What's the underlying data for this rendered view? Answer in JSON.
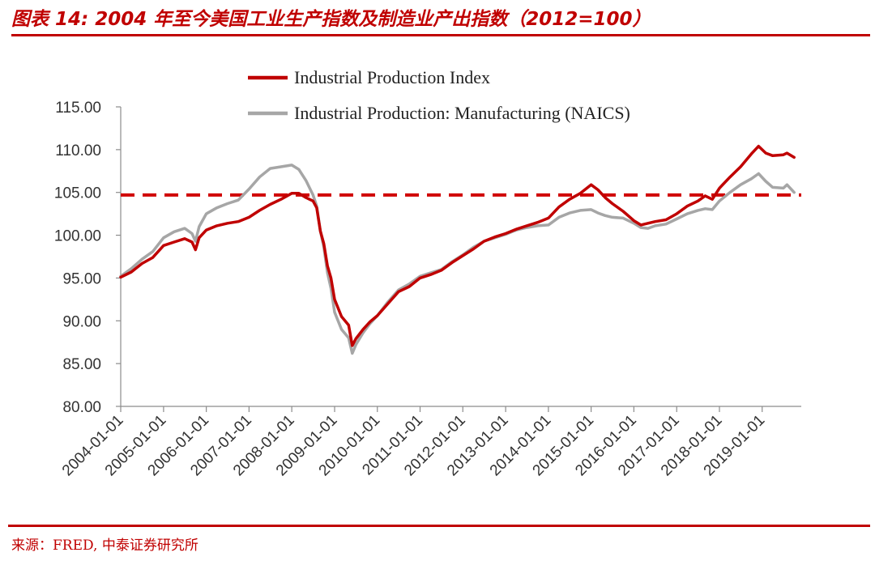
{
  "figure": {
    "title": "图表 14:  2004 年至今美国工业生产指数及制造业产出指数（2012=100）",
    "source": "来源：FRED, 中泰证券研究所"
  },
  "chart_data": {
    "type": "line",
    "ylim": [
      80,
      115
    ],
    "y_ticks": [
      "115.00",
      "110.00",
      "105.00",
      "100.00",
      "95.00",
      "90.00",
      "85.00",
      "80.00"
    ],
    "x_ticks": [
      "2004-01-01",
      "2005-01-01",
      "2006-01-01",
      "2007-01-01",
      "2008-01-01",
      "2009-01-01",
      "2010-01-01",
      "2011-01-01",
      "2012-01-01",
      "2013-01-01",
      "2014-01-01",
      "2015-01-01",
      "2016-01-01",
      "2017-01-01",
      "2018-01-01",
      "2019-01-01"
    ],
    "grid": false,
    "legend_position": "top",
    "reference_line": {
      "y": 104.7,
      "style": "dashed",
      "color": "#d00000"
    },
    "series": [
      {
        "name": "Industrial Production Index",
        "color": "#c00000",
        "points": [
          [
            "2004-01-01",
            95.1
          ],
          [
            "2004-04-01",
            95.7
          ],
          [
            "2004-07-01",
            96.7
          ],
          [
            "2004-10-01",
            97.4
          ],
          [
            "2005-01-01",
            98.8
          ],
          [
            "2005-04-01",
            99.2
          ],
          [
            "2005-07-01",
            99.6
          ],
          [
            "2005-09-01",
            99.2
          ],
          [
            "2005-10-01",
            98.3
          ],
          [
            "2005-11-01",
            99.7
          ],
          [
            "2006-01-01",
            100.6
          ],
          [
            "2006-04-01",
            101.1
          ],
          [
            "2006-07-01",
            101.4
          ],
          [
            "2006-10-01",
            101.6
          ],
          [
            "2007-01-01",
            102.1
          ],
          [
            "2007-04-01",
            102.9
          ],
          [
            "2007-07-01",
            103.6
          ],
          [
            "2007-10-01",
            104.2
          ],
          [
            "2008-01-01",
            104.9
          ],
          [
            "2008-03-01",
            104.9
          ],
          [
            "2008-05-01",
            104.4
          ],
          [
            "2008-07-01",
            104.0
          ],
          [
            "2008-08-01",
            103.2
          ],
          [
            "2008-09-01",
            100.5
          ],
          [
            "2008-10-01",
            99.0
          ],
          [
            "2008-11-01",
            96.4
          ],
          [
            "2008-12-01",
            95.0
          ],
          [
            "2009-01-01",
            92.5
          ],
          [
            "2009-03-01",
            90.5
          ],
          [
            "2009-05-01",
            89.5
          ],
          [
            "2009-06-01",
            87.1
          ],
          [
            "2009-07-01",
            87.9
          ],
          [
            "2009-09-01",
            89.0
          ],
          [
            "2009-11-01",
            89.9
          ],
          [
            "2010-01-01",
            90.6
          ],
          [
            "2010-04-01",
            92.0
          ],
          [
            "2010-07-01",
            93.4
          ],
          [
            "2010-10-01",
            94.0
          ],
          [
            "2011-01-01",
            95.0
          ],
          [
            "2011-04-01",
            95.4
          ],
          [
            "2011-07-01",
            95.9
          ],
          [
            "2011-10-01",
            96.8
          ],
          [
            "2012-01-01",
            97.6
          ],
          [
            "2012-04-01",
            98.4
          ],
          [
            "2012-07-01",
            99.3
          ],
          [
            "2012-10-01",
            99.8
          ],
          [
            "2013-01-01",
            100.2
          ],
          [
            "2013-04-01",
            100.7
          ],
          [
            "2013-07-01",
            101.1
          ],
          [
            "2013-10-01",
            101.5
          ],
          [
            "2014-01-01",
            102.0
          ],
          [
            "2014-04-01",
            103.3
          ],
          [
            "2014-07-01",
            104.2
          ],
          [
            "2014-10-01",
            104.9
          ],
          [
            "2015-01-01",
            105.9
          ],
          [
            "2015-03-01",
            105.3
          ],
          [
            "2015-05-01",
            104.4
          ],
          [
            "2015-07-01",
            103.7
          ],
          [
            "2015-10-01",
            102.8
          ],
          [
            "2016-01-01",
            101.7
          ],
          [
            "2016-03-01",
            101.2
          ],
          [
            "2016-05-01",
            101.4
          ],
          [
            "2016-07-01",
            101.6
          ],
          [
            "2016-10-01",
            101.8
          ],
          [
            "2017-01-01",
            102.5
          ],
          [
            "2017-04-01",
            103.4
          ],
          [
            "2017-07-01",
            104.0
          ],
          [
            "2017-09-01",
            104.6
          ],
          [
            "2017-11-01",
            104.2
          ],
          [
            "2018-01-01",
            105.5
          ],
          [
            "2018-04-01",
            106.8
          ],
          [
            "2018-07-01",
            108.0
          ],
          [
            "2018-10-01",
            109.5
          ],
          [
            "2018-12-01",
            110.4
          ],
          [
            "2019-02-01",
            109.6
          ],
          [
            "2019-04-01",
            109.3
          ],
          [
            "2019-07-01",
            109.4
          ],
          [
            "2019-08-01",
            109.6
          ],
          [
            "2019-10-01",
            109.1
          ]
        ]
      },
      {
        "name": "Industrial Production: Manufacturing (NAICS)",
        "color": "#a6a6a6",
        "points": [
          [
            "2004-01-01",
            95.2
          ],
          [
            "2004-04-01",
            96.1
          ],
          [
            "2004-07-01",
            97.2
          ],
          [
            "2004-10-01",
            98.1
          ],
          [
            "2005-01-01",
            99.7
          ],
          [
            "2005-04-01",
            100.4
          ],
          [
            "2005-07-01",
            100.8
          ],
          [
            "2005-09-01",
            100.2
          ],
          [
            "2005-10-01",
            99.3
          ],
          [
            "2005-11-01",
            101.0
          ],
          [
            "2006-01-01",
            102.5
          ],
          [
            "2006-04-01",
            103.2
          ],
          [
            "2006-07-01",
            103.7
          ],
          [
            "2006-10-01",
            104.1
          ],
          [
            "2007-01-01",
            105.4
          ],
          [
            "2007-04-01",
            106.8
          ],
          [
            "2007-07-01",
            107.8
          ],
          [
            "2007-10-01",
            108.0
          ],
          [
            "2008-01-01",
            108.2
          ],
          [
            "2008-03-01",
            107.7
          ],
          [
            "2008-05-01",
            106.4
          ],
          [
            "2008-07-01",
            104.7
          ],
          [
            "2008-08-01",
            103.4
          ],
          [
            "2008-09-01",
            100.5
          ],
          [
            "2008-10-01",
            98.6
          ],
          [
            "2008-11-01",
            95.6
          ],
          [
            "2008-12-01",
            93.8
          ],
          [
            "2009-01-01",
            91.0
          ],
          [
            "2009-03-01",
            89.0
          ],
          [
            "2009-05-01",
            88.0
          ],
          [
            "2009-06-01",
            86.2
          ],
          [
            "2009-07-01",
            87.2
          ],
          [
            "2009-09-01",
            88.6
          ],
          [
            "2009-11-01",
            89.7
          ],
          [
            "2010-01-01",
            90.6
          ],
          [
            "2010-04-01",
            92.2
          ],
          [
            "2010-07-01",
            93.6
          ],
          [
            "2010-10-01",
            94.3
          ],
          [
            "2011-01-01",
            95.2
          ],
          [
            "2011-04-01",
            95.6
          ],
          [
            "2011-07-01",
            96.0
          ],
          [
            "2011-10-01",
            96.9
          ],
          [
            "2012-01-01",
            97.7
          ],
          [
            "2012-04-01",
            98.6
          ],
          [
            "2012-07-01",
            99.3
          ],
          [
            "2012-10-01",
            99.7
          ],
          [
            "2013-01-01",
            100.1
          ],
          [
            "2013-04-01",
            100.6
          ],
          [
            "2013-07-01",
            100.9
          ],
          [
            "2013-10-01",
            101.1
          ],
          [
            "2014-01-01",
            101.2
          ],
          [
            "2014-04-01",
            102.1
          ],
          [
            "2014-07-01",
            102.6
          ],
          [
            "2014-10-01",
            102.9
          ],
          [
            "2015-01-01",
            103.0
          ],
          [
            "2015-03-01",
            102.6
          ],
          [
            "2015-05-01",
            102.3
          ],
          [
            "2015-07-01",
            102.1
          ],
          [
            "2015-10-01",
            102.0
          ],
          [
            "2016-01-01",
            101.4
          ],
          [
            "2016-03-01",
            100.9
          ],
          [
            "2016-05-01",
            100.8
          ],
          [
            "2016-07-01",
            101.1
          ],
          [
            "2016-10-01",
            101.3
          ],
          [
            "2017-01-01",
            101.9
          ],
          [
            "2017-04-01",
            102.5
          ],
          [
            "2017-07-01",
            102.9
          ],
          [
            "2017-09-01",
            103.1
          ],
          [
            "2017-11-01",
            103.0
          ],
          [
            "2018-01-01",
            104.0
          ],
          [
            "2018-04-01",
            105.0
          ],
          [
            "2018-07-01",
            105.9
          ],
          [
            "2018-10-01",
            106.6
          ],
          [
            "2018-12-01",
            107.2
          ],
          [
            "2019-02-01",
            106.3
          ],
          [
            "2019-04-01",
            105.6
          ],
          [
            "2019-07-01",
            105.5
          ],
          [
            "2019-08-01",
            105.9
          ],
          [
            "2019-10-01",
            105.0
          ]
        ]
      }
    ]
  }
}
